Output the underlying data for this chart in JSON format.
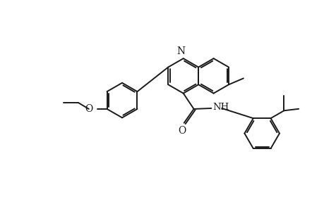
{
  "bg_color": "#ffffff",
  "line_color": "#1a1a1a",
  "lw": 1.4,
  "dbo": 0.048,
  "fs": 9.5,
  "fig_w": 4.6,
  "fig_h": 3.0,
  "dpi": 100,
  "xlim": [
    0,
    9.2
  ],
  "ylim": [
    0,
    6.0
  ]
}
